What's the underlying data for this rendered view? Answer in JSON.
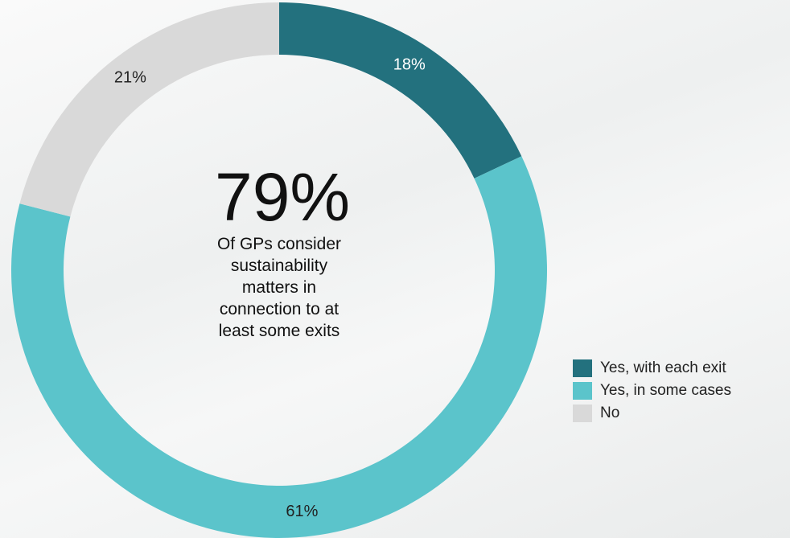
{
  "chart_data": {
    "type": "donut",
    "categories": [
      "Yes, with each exit",
      "Yes, in some cases",
      "No"
    ],
    "values": [
      18,
      61,
      21
    ],
    "value_labels": [
      "18%",
      "61%",
      "21%"
    ],
    "colors": [
      "#23717e",
      "#5bc4cb",
      "#d9d9d9"
    ],
    "center_text": "79%",
    "center_subtext": "Of GPs consider sustainability matters in connection to at least some exits",
    "legend": "right"
  }
}
